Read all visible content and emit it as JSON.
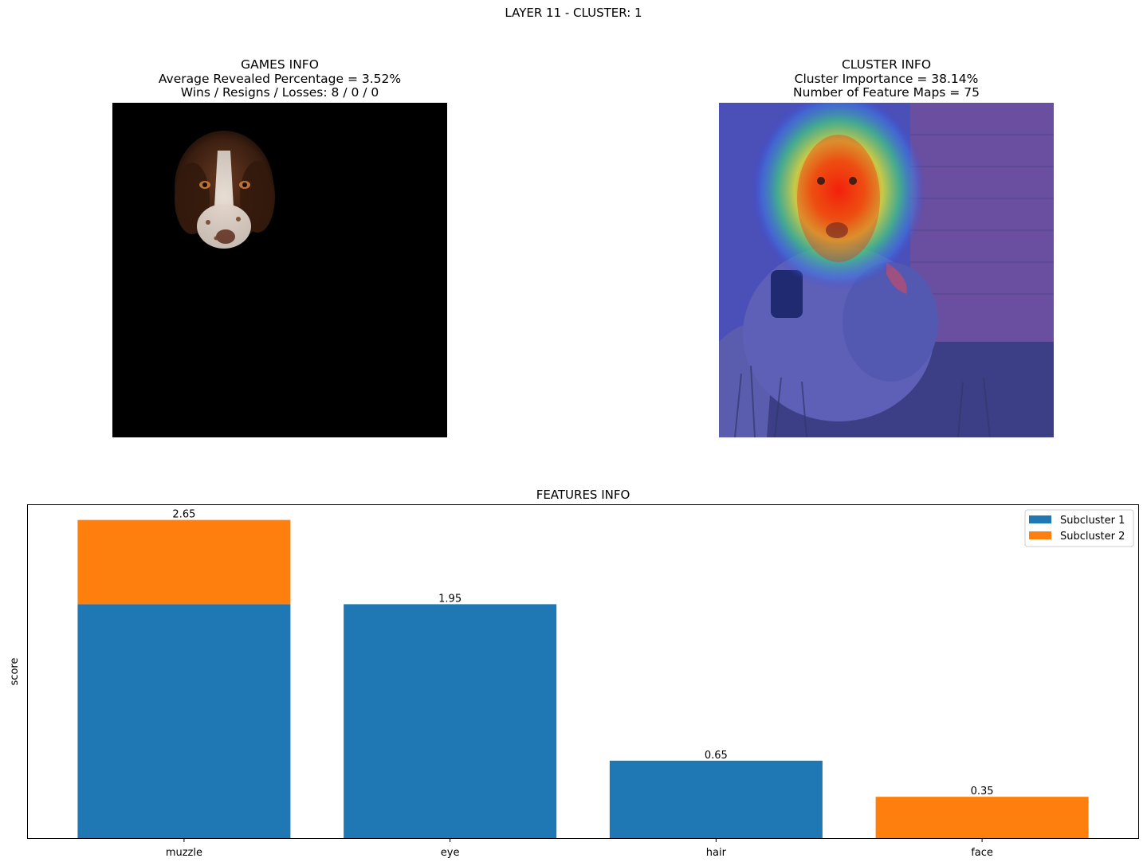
{
  "suptitle": "LAYER 11 - CLUSTER: 1",
  "games_info": {
    "title": "GAMES INFO",
    "line1": "Average Revealed Percentage = 3.52%",
    "line2": "Wins / Resigns / Losses: 8 / 0 / 0"
  },
  "cluster_info": {
    "title": "CLUSTER INFO",
    "line1": "Cluster Importance = 38.14%",
    "line2": "Number of Feature Maps = 75"
  },
  "features_title": "FEATURES INFO",
  "colors": {
    "subcluster1": "#1f77b4",
    "subcluster2": "#ff7f0e"
  },
  "chart_data": {
    "type": "bar",
    "stacked": true,
    "title": "FEATURES INFO",
    "xlabel": "",
    "ylabel": "score",
    "categories": [
      "muzzle",
      "eye",
      "hair",
      "face"
    ],
    "series": [
      {
        "name": "Subcluster 1",
        "values": [
          1.95,
          1.95,
          0.65,
          0.0
        ]
      },
      {
        "name": "Subcluster 2",
        "values": [
          0.7,
          0.0,
          0.0,
          0.35
        ]
      }
    ],
    "totals_labels": [
      "2.65",
      "1.95",
      "0.65",
      "0.35"
    ],
    "ylim": [
      0,
      2.78
    ],
    "legend": "top-right",
    "grid": false
  }
}
